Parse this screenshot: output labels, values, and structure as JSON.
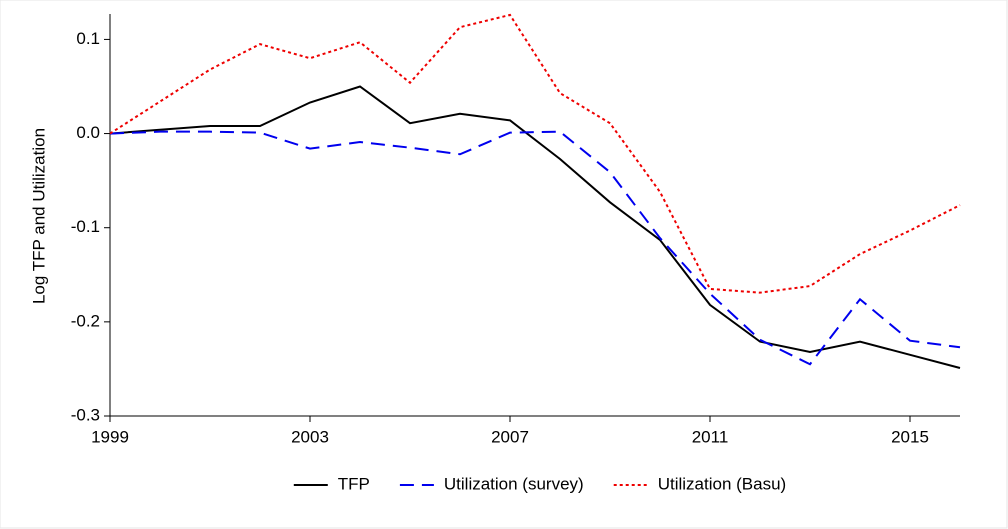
{
  "chart_data": {
    "type": "line",
    "y_label": "Log TFP and Utilization",
    "x": [
      1999,
      2000,
      2001,
      2002,
      2003,
      2004,
      2005,
      2006,
      2007,
      2008,
      2009,
      2010,
      2011,
      2012,
      2013,
      2014,
      2015,
      2016
    ],
    "series": [
      {
        "name": "TFP",
        "color": "#000000",
        "dash": "solid",
        "values": [
          0,
          0.004,
          0.008,
          0.008,
          0.033,
          0.05,
          0.011,
          0.021,
          0.014,
          -0.027,
          -0.073,
          -0.113,
          -0.182,
          -0.221,
          -0.232,
          -0.221,
          -0.235,
          -0.249
        ]
      },
      {
        "name": "Utilization (survey)",
        "color": "#0000ee",
        "dash": "dashed",
        "values": [
          0,
          0.002,
          0.002,
          0.001,
          -0.016,
          -0.009,
          -0.015,
          -0.022,
          0.001,
          0.002,
          -0.041,
          -0.111,
          -0.17,
          -0.219,
          -0.245,
          -0.176,
          -0.22,
          -0.227
        ]
      },
      {
        "name": "Utilization (Basu)",
        "color": "#ee0000",
        "dash": "dotted",
        "values": [
          0,
          0.034,
          0.068,
          0.095,
          0.08,
          0.097,
          0.054,
          0.113,
          0.126,
          0.043,
          0.011,
          -0.062,
          -0.165,
          -0.169,
          -0.162,
          -0.128,
          -0.103,
          -0.076
        ]
      }
    ],
    "xlim": [
      1999,
      2016
    ],
    "xticks": [
      1999,
      2003,
      2007,
      2011,
      2015
    ],
    "ylim": [
      -0.3,
      0.127
    ],
    "yticks": [
      -0.3,
      -0.2,
      -0.1,
      {
        "value": 0,
        "label": "0.0"
      },
      0.1
    ],
    "grid": false,
    "legend": "bottom"
  }
}
